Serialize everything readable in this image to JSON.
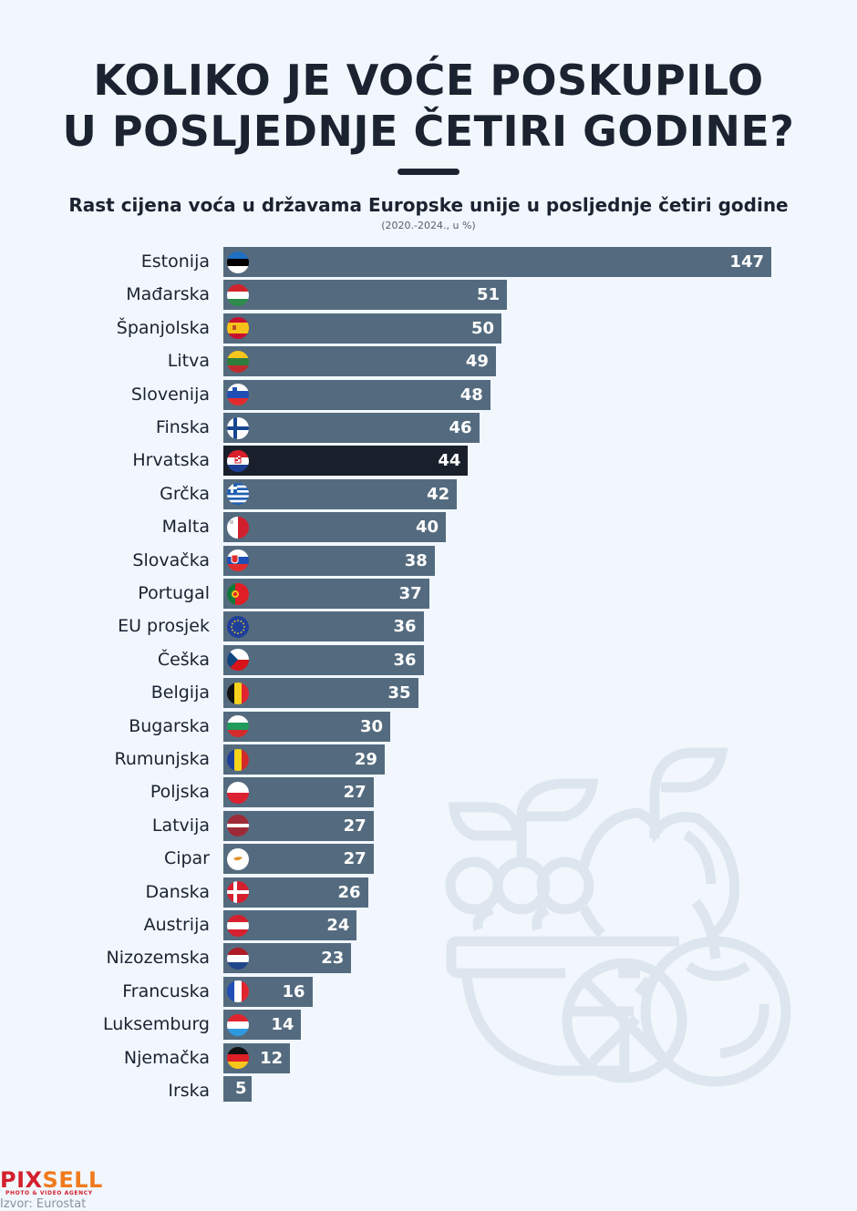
{
  "title": {
    "line1": "KOLIKO JE VOĆE POSKUPILO",
    "line2": "U POSLJEDNJE ČETIRI GODINE?"
  },
  "subtitle": "Rast cijena voća u državama Europske unije u posljednje četiri godine",
  "subnote": "(2020.-2024., u %)",
  "footer": {
    "logo_part1": "PIX",
    "logo_part2": "SELL",
    "logo_tagline": "PHOTO & VIDEO AGENCY",
    "source": "Izvor: Eurostat"
  },
  "colors": {
    "bar": "#546b7f",
    "highlight": "#19202b",
    "background": "#f1f7fd",
    "text": "#1b2230"
  },
  "chart_data": {
    "type": "bar",
    "orientation": "horizontal",
    "title": "Rast cijena voća u državama Europske unije u posljednje četiri godine",
    "subtitle": "(2020.-2024., u %)",
    "xlabel": "",
    "ylabel": "",
    "unit": "%",
    "grid": false,
    "highlight_category": "Hrvatska",
    "categories": [
      "Estonija",
      "Mađarska",
      "Španjolska",
      "Litva",
      "Slovenija",
      "Finska",
      "Hrvatska",
      "Grčka",
      "Malta",
      "Slovačka",
      "Portugal",
      "EU prosjek",
      "Češka",
      "Belgija",
      "Bugarska",
      "Rumunjska",
      "Poljska",
      "Latvija",
      "Cipar",
      "Danska",
      "Austrija",
      "Nizozemska",
      "Francuska",
      "Luksemburg",
      "Njemačka",
      "Irska"
    ],
    "values": [
      147,
      51,
      50,
      49,
      48,
      46,
      44,
      42,
      40,
      38,
      37,
      36,
      36,
      35,
      30,
      29,
      27,
      27,
      27,
      26,
      24,
      23,
      16,
      14,
      12,
      5
    ],
    "flags": [
      "estonia-flag",
      "hungary-flag",
      "spain-flag",
      "lithuania-flag",
      "slovenia-flag",
      "finland-flag",
      "croatia-flag",
      "greece-flag",
      "malta-flag",
      "slovakia-flag",
      "portugal-flag",
      "eu-flag",
      "czechia-flag",
      "belgium-flag",
      "bulgaria-flag",
      "romania-flag",
      "poland-flag",
      "latvia-flag",
      "cyprus-flag",
      "denmark-flag",
      "austria-flag",
      "netherlands-flag",
      "france-flag",
      "luxembourg-flag",
      "germany-flag",
      ""
    ],
    "source": "Izvor: Eurostat"
  }
}
